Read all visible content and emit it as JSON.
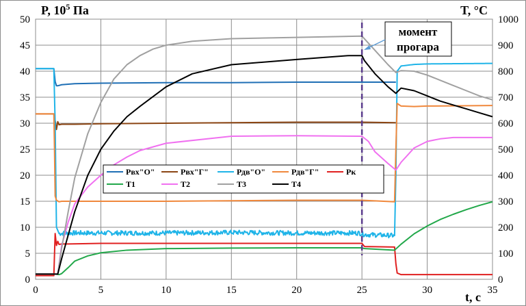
{
  "chart_data": {
    "type": "line",
    "title": "",
    "ylabel_left": "P, 10^5 Па",
    "ylabel_left_base": "P, 10",
    "ylabel_left_sup": "5",
    "ylabel_left_unit": " Па",
    "ylabel_right": "T, °C",
    "xlabel": "t, c",
    "xlim": [
      0,
      35
    ],
    "ylim_left": [
      0,
      50
    ],
    "ylim_right": [
      0,
      1000
    ],
    "grid": true,
    "xticks": [
      0,
      5,
      10,
      15,
      20,
      25,
      30,
      35
    ],
    "yticks_left": [
      0,
      5,
      10,
      15,
      20,
      25,
      30,
      35,
      40,
      45,
      50
    ],
    "yticks_right": [
      0,
      100,
      200,
      300,
      400,
      500,
      600,
      700,
      800,
      900,
      1000
    ],
    "legend_position": "center",
    "annotation": {
      "text_line1": "момент",
      "text_line2": "прогара",
      "x": 25,
      "point": [
        25.1,
        44.3
      ]
    },
    "vline_x": 25,
    "series": [
      {
        "name": "Рвх\"О\"",
        "axis": "left",
        "color": "#1f6fb5",
        "x": [
          0,
          1.4,
          1.5,
          1.6,
          1.7,
          2,
          3,
          5,
          10,
          15,
          20,
          25,
          27.6
        ],
        "y": [
          40.5,
          40.5,
          38,
          37.2,
          37.2,
          37.4,
          37.6,
          37.7,
          37.8,
          37.8,
          37.9,
          37.9,
          37.9
        ]
      },
      {
        "name": "Рвх\"Г\"",
        "axis": "left",
        "color": "#8b4513",
        "x": [
          0,
          1.4,
          1.5,
          1.6,
          1.7,
          1.8,
          2,
          3,
          5,
          10,
          15,
          20,
          25,
          27.6
        ],
        "y": [
          31.8,
          31.8,
          30.5,
          28.8,
          30.3,
          29.7,
          29.8,
          29.8,
          29.9,
          30,
          30.1,
          30.2,
          30.2,
          30.1
        ]
      },
      {
        "name": "Рдв\"О\"",
        "axis": "left",
        "color": "#1fb4e8",
        "noise": 0.45,
        "x": [
          0,
          1.4,
          1.5,
          1.6,
          1.8,
          2.5,
          5,
          10,
          15,
          20,
          24.8,
          25.2,
          27.5,
          27.6,
          27.7,
          28,
          29,
          30,
          35
        ],
        "y": [
          40.5,
          40.5,
          30,
          10,
          8.8,
          8.9,
          8.9,
          8.9,
          9,
          8.9,
          8.9,
          8.6,
          8.4,
          20,
          40,
          41,
          41.3,
          41.4,
          41.5
        ]
      },
      {
        "name": "Рдв\"Г\"",
        "axis": "left",
        "color": "#f0883c",
        "x": [
          0,
          1.4,
          1.45,
          1.5,
          1.6,
          1.8,
          2,
          5,
          10,
          15,
          20,
          25,
          27.5,
          27.6,
          27.7,
          28,
          29,
          30,
          35
        ],
        "y": [
          31.8,
          31.8,
          25,
          16,
          15.2,
          14.9,
          15,
          15,
          15,
          15.1,
          15.2,
          15.2,
          14.9,
          25,
          33.8,
          33.3,
          33.2,
          33.3,
          33.4
        ]
      },
      {
        "name": "Рк",
        "axis": "left",
        "color": "#e02020",
        "x": [
          0,
          1.4,
          1.5,
          1.6,
          1.7,
          1.8,
          2,
          2.5,
          5,
          10,
          15,
          20,
          25,
          25.2,
          27.5,
          27.6,
          27.7,
          28,
          30,
          35
        ],
        "y": [
          0.7,
          0.7,
          8.8,
          6.5,
          7.3,
          6.7,
          6.8,
          6.8,
          6.9,
          6.9,
          6.9,
          6.9,
          6.9,
          6.3,
          6.2,
          3,
          1.2,
          0.9,
          0.9,
          0.9
        ]
      },
      {
        "name": "Т1",
        "axis": "right",
        "color": "#22a84a",
        "x": [
          0,
          1.5,
          1.8,
          2,
          2.5,
          3,
          4,
          5,
          7,
          10,
          15,
          20,
          25,
          25.2,
          27.5,
          28,
          29,
          30,
          31,
          32,
          33,
          34,
          35
        ],
        "y": [
          20,
          20,
          18,
          22,
          45,
          70,
          90,
          102,
          112,
          118,
          120,
          121,
          121,
          118,
          112,
          135,
          175,
          205,
          230,
          250,
          268,
          284,
          298
        ]
      },
      {
        "name": "Т2",
        "axis": "right",
        "color": "#f070f0",
        "x": [
          0,
          1.7,
          2,
          2.5,
          3,
          4,
          5,
          6,
          7,
          8,
          10,
          15,
          20,
          25,
          25.5,
          26,
          27,
          27.6,
          28,
          29,
          30,
          31,
          32,
          35
        ],
        "y": [
          20,
          20,
          130,
          220,
          290,
          355,
          400,
          440,
          470,
          495,
          523,
          550,
          552,
          550,
          530,
          490,
          445,
          420,
          450,
          505,
          530,
          540,
          545,
          545
        ]
      },
      {
        "name": "Т3",
        "axis": "right",
        "color": "#a0a0a0",
        "x": [
          0,
          1.7,
          2,
          2.5,
          3,
          4,
          5,
          6,
          7,
          8,
          9,
          10,
          12,
          15,
          20,
          25,
          26,
          27,
          27.6,
          28,
          29,
          30,
          31,
          32,
          33,
          34,
          35
        ],
        "y": [
          20,
          20,
          120,
          260,
          390,
          560,
          680,
          770,
          825,
          860,
          885,
          900,
          915,
          925,
          930,
          935,
          880,
          825,
          795,
          802,
          800,
          785,
          765,
          745,
          725,
          705,
          690
        ]
      },
      {
        "name": "Т4",
        "axis": "right",
        "color": "#000000",
        "x": [
          0,
          1.7,
          2,
          2.5,
          3,
          4,
          5,
          6,
          7,
          8,
          10,
          12,
          15,
          20,
          24,
          25,
          25.2,
          26,
          27,
          27.6,
          28,
          29,
          30,
          31,
          32,
          33,
          34,
          35
        ],
        "y": [
          20,
          20,
          80,
          170,
          260,
          400,
          500,
          570,
          625,
          665,
          740,
          790,
          825,
          845,
          860,
          860,
          840,
          790,
          740,
          715,
          735,
          725,
          705,
          685,
          670,
          655,
          640,
          625
        ]
      }
    ]
  }
}
